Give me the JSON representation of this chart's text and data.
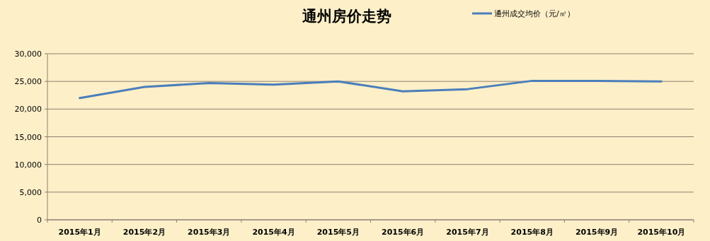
{
  "chart_data": {
    "type": "line",
    "title": "通州房价走势",
    "categories": [
      "2015年1月",
      "2015年2月",
      "2015年3月",
      "2015年4月",
      "2015年5月",
      "2015年6月",
      "2015年7月",
      "2015年8月",
      "2015年9月",
      "2015年10月"
    ],
    "series": [
      {
        "name": "通州成交均价（元/㎡）",
        "color": "#4a7ebb",
        "values": [
          22000,
          24000,
          24700,
          24400,
          25000,
          23200,
          23600,
          25100,
          25100,
          25000
        ]
      }
    ],
    "ylim": [
      0,
      30000
    ],
    "yticks": [
      {
        "value": 0,
        "label": "0"
      },
      {
        "value": 5000,
        "label": "5,000"
      },
      {
        "value": 10000,
        "label": "10,000"
      },
      {
        "value": 15000,
        "label": "15,000"
      },
      {
        "value": 20000,
        "label": "20,000"
      },
      {
        "value": 25000,
        "label": "25,000"
      },
      {
        "value": 30000,
        "label": "30,000"
      }
    ],
    "grid": "y",
    "legend": "top right",
    "marker": "none",
    "line_style": "solid"
  }
}
